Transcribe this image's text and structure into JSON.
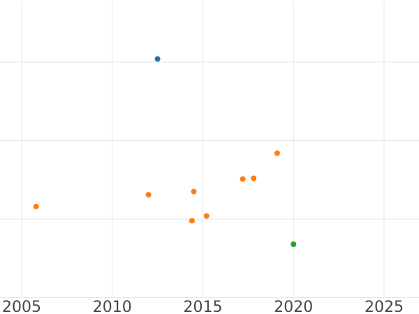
{
  "chart_data": {
    "type": "scatter",
    "title": "",
    "xlabel": "",
    "ylabel": "",
    "grid": true,
    "legend": null,
    "x_axis": {
      "tick_labels": [
        "2005",
        "2010",
        "2015",
        "2020",
        "2025"
      ],
      "tick_values": [
        2005,
        2010,
        2015,
        2020,
        2025
      ],
      "range": [
        2003.8,
        2026.9
      ]
    },
    "y_axis": {
      "tick_labels": [],
      "gridline_values": [
        0,
        1,
        2,
        3
      ],
      "range": [
        -0.21,
        3.79
      ],
      "note": "no y tick labels visible; values estimated in unlabeled gridline units (bottom gridline = 0, spacing = 1)"
    },
    "series": [
      {
        "name": "blue",
        "color": "#1f77b4",
        "points": [
          {
            "x": 2012.5,
            "y": 3.04
          }
        ]
      },
      {
        "name": "orange",
        "color": "#ff7f0e",
        "points": [
          {
            "x": 2005.8,
            "y": 1.16
          },
          {
            "x": 2012.0,
            "y": 1.31
          },
          {
            "x": 2014.4,
            "y": 0.98
          },
          {
            "x": 2014.5,
            "y": 1.35
          },
          {
            "x": 2015.2,
            "y": 1.04
          },
          {
            "x": 2017.2,
            "y": 1.51
          },
          {
            "x": 2017.8,
            "y": 1.52
          },
          {
            "x": 2019.1,
            "y": 1.84
          }
        ]
      },
      {
        "name": "green",
        "color": "#2ca02c",
        "points": [
          {
            "x": 2020.0,
            "y": 0.68
          }
        ]
      }
    ],
    "marker": {
      "shape": "circle",
      "radius_px": 4
    },
    "style": {
      "background": "#ffffff",
      "grid_color": "#e6e6e6",
      "tick_label_color": "#474747"
    }
  }
}
